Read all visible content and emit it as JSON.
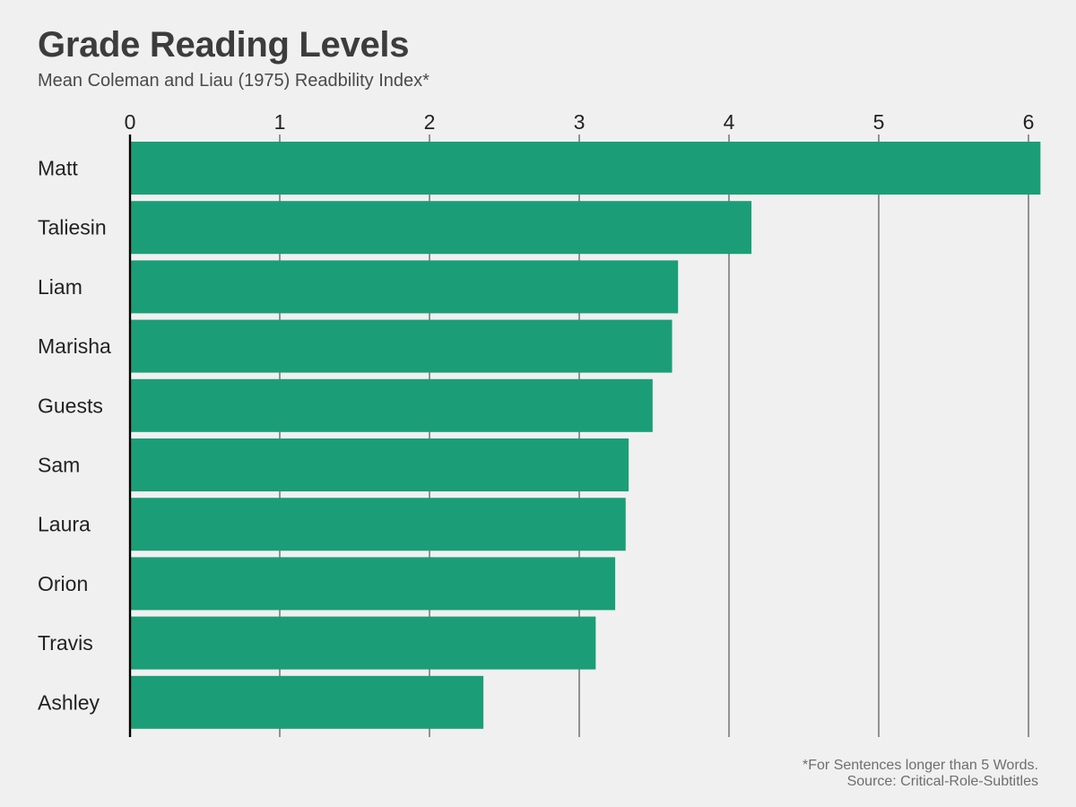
{
  "chart_data": {
    "type": "bar",
    "orientation": "horizontal",
    "title": "Grade Reading Levels",
    "subtitle": "Mean Coleman and Liau (1975) Readbility Index*",
    "categories": [
      "Matt",
      "Taliesin",
      "Liam",
      "Marisha",
      "Guests",
      "Sam",
      "Laura",
      "Orion",
      "Travis",
      "Ashley"
    ],
    "values": [
      6.08,
      4.15,
      3.66,
      3.62,
      3.49,
      3.33,
      3.31,
      3.24,
      3.11,
      2.36
    ],
    "xlabel": "",
    "ylabel": "",
    "xlim": [
      0,
      6.1
    ],
    "ticks": [
      "0",
      "1",
      "2",
      "3",
      "4",
      "5",
      "6"
    ],
    "tick_values": [
      0,
      1,
      2,
      3,
      4,
      5,
      6
    ],
    "grid": true,
    "bar_color": "#1b9e77",
    "notes": [
      "*For Sentences longer than 5 Words.",
      "Source: Critical-Role-Subtitles"
    ]
  }
}
